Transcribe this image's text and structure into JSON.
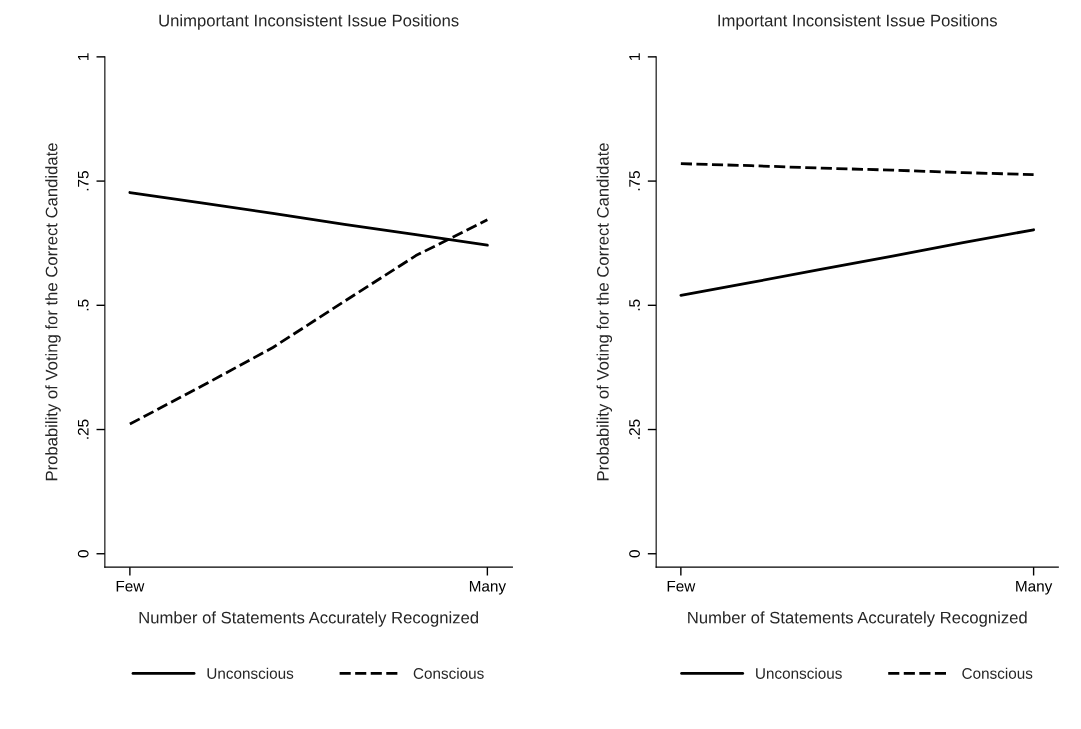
{
  "chart_data": [
    {
      "type": "line",
      "title": "Unimportant Inconsistent Issue Positions",
      "xlabel": "Number of Statements Accurately Recognized",
      "ylabel": "Probability of Voting for the Correct Candidate",
      "categories": [
        "Few",
        null,
        null,
        null,
        null,
        "Many"
      ],
      "ylim": [
        -0.027,
        1.0
      ],
      "yticks": [
        {
          "value": 0,
          "label": "0"
        },
        {
          "value": 0.25,
          "label": ".25"
        },
        {
          "value": 0.5,
          "label": ".5"
        },
        {
          "value": 0.75,
          "label": ".75"
        },
        {
          "value": 1,
          "label": "1"
        }
      ],
      "grid": false,
      "legend": "bottom",
      "marker": "none",
      "series": [
        {
          "name": "Unconscious",
          "color": "#000000",
          "line_style": "solid",
          "values": [
            0.727,
            0.706,
            0.685,
            0.663,
            0.642,
            0.621
          ]
        },
        {
          "name": "Conscious",
          "color": "#000000",
          "line_style": "dashed",
          "values": [
            0.261,
            0.337,
            0.415,
            0.508,
            0.6,
            0.672
          ]
        }
      ]
    },
    {
      "type": "line",
      "title": "Important Inconsistent Issue Positions",
      "xlabel": "Number of Statements Accurately Recognized",
      "ylabel": "Probability of Voting for the Correct Candidate",
      "categories": [
        "Few",
        null,
        null,
        null,
        null,
        "Many"
      ],
      "ylim": [
        -0.027,
        1.0
      ],
      "yticks": [
        {
          "value": 0,
          "label": "0"
        },
        {
          "value": 0.25,
          "label": ".25"
        },
        {
          "value": 0.5,
          "label": ".5"
        },
        {
          "value": 0.75,
          "label": ".75"
        },
        {
          "value": 1,
          "label": "1"
        }
      ],
      "grid": false,
      "legend": "bottom",
      "marker": "none",
      "series": [
        {
          "name": "Unconscious",
          "color": "#000000",
          "line_style": "solid",
          "values": [
            0.52,
            0.546,
            0.573,
            0.599,
            0.626,
            0.652
          ]
        },
        {
          "name": "Conscious",
          "color": "#000000",
          "line_style": "dashed",
          "values": [
            0.785,
            0.781,
            0.776,
            0.772,
            0.767,
            0.763
          ]
        }
      ]
    }
  ]
}
